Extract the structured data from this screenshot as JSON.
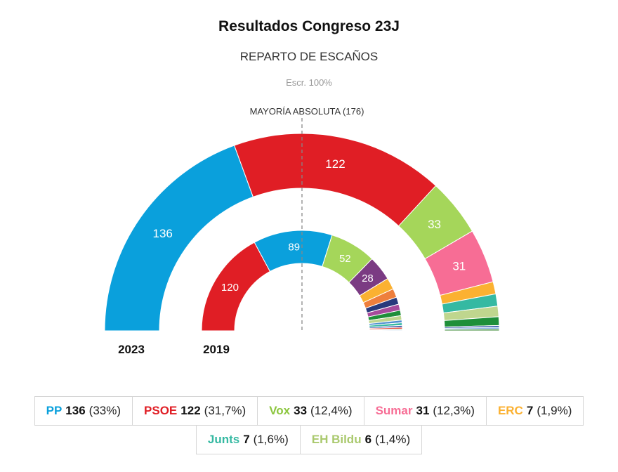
{
  "header": {
    "title": "Resultados Congreso 23J",
    "subtitle": "REPARTO DE ESCAÑOS",
    "note": "Escr. 100%"
  },
  "chart_data": {
    "type": "parliament-donut",
    "total_seats": 350,
    "majority_label": "MAYORÍA ABSOLUTA (176)",
    "majority_seats": 176,
    "rings": [
      {
        "label": "2023",
        "parties": [
          {
            "seats": 136,
            "label": "136",
            "color": "#0aa0dc"
          },
          {
            "seats": 122,
            "label": "122",
            "color": "#e01e25"
          },
          {
            "seats": 33,
            "label": "33",
            "color": "#a5d65a"
          },
          {
            "seats": 31,
            "label": "31",
            "color": "#f76d95"
          },
          {
            "seats": 7,
            "label": "",
            "color": "#fbb131"
          },
          {
            "seats": 7,
            "label": "",
            "color": "#35b9a2"
          },
          {
            "seats": 6,
            "label": "",
            "color": "#bfd68e"
          },
          {
            "seats": 5,
            "label": "",
            "color": "#1f8f3a"
          },
          {
            "seats": 1,
            "label": "",
            "color": "#2c4ea3"
          },
          {
            "seats": 1,
            "label": "",
            "color": "#7fb0dd"
          },
          {
            "seats": 1,
            "label": "",
            "color": "#3c8b35"
          }
        ]
      },
      {
        "label": "2019",
        "parties": [
          {
            "seats": 120,
            "label": "120",
            "color": "#e01e25"
          },
          {
            "seats": 89,
            "label": "89",
            "color": "#0aa0dc"
          },
          {
            "seats": 52,
            "label": "52",
            "color": "#a5d65a"
          },
          {
            "seats": 28,
            "label": "28",
            "color": "#7b3b83"
          },
          {
            "seats": 13,
            "label": "",
            "color": "#fbb131"
          },
          {
            "seats": 10,
            "label": "",
            "color": "#ee7f3d"
          },
          {
            "seats": 8,
            "label": "",
            "color": "#28397c"
          },
          {
            "seats": 7,
            "label": "",
            "color": "#a64b9c"
          },
          {
            "seats": 6,
            "label": "",
            "color": "#1f8f3a"
          },
          {
            "seats": 5,
            "label": "",
            "color": "#bfd68e"
          },
          {
            "seats": 3,
            "label": "",
            "color": "#4f8fd0"
          },
          {
            "seats": 3,
            "label": "",
            "color": "#35b9a2"
          },
          {
            "seats": 2,
            "label": "",
            "color": "#2c4ea3"
          },
          {
            "seats": 2,
            "label": "",
            "color": "#e44b3c"
          },
          {
            "seats": 1,
            "label": "",
            "color": "#3c8b35"
          },
          {
            "seats": 1,
            "label": "",
            "color": "#7fb0dd"
          }
        ]
      }
    ],
    "legend": [
      {
        "name": "PP",
        "seats": "136",
        "pct": "(33%)",
        "color": "#0aa0dc"
      },
      {
        "name": "PSOE",
        "seats": "122",
        "pct": "(31,7%)",
        "color": "#e01e25"
      },
      {
        "name": "Vox",
        "seats": "33",
        "pct": "(12,4%)",
        "color": "#8cc63f"
      },
      {
        "name": "Sumar",
        "seats": "31",
        "pct": "(12,3%)",
        "color": "#f76d95"
      },
      {
        "name": "ERC",
        "seats": "7",
        "pct": "(1,9%)",
        "color": "#fbb131"
      },
      {
        "name": "Junts",
        "seats": "7",
        "pct": "(1,6%)",
        "color": "#35b9a2"
      },
      {
        "name": "EH Bildu",
        "seats": "6",
        "pct": "(1,4%)",
        "color": "#aac96e"
      }
    ]
  }
}
